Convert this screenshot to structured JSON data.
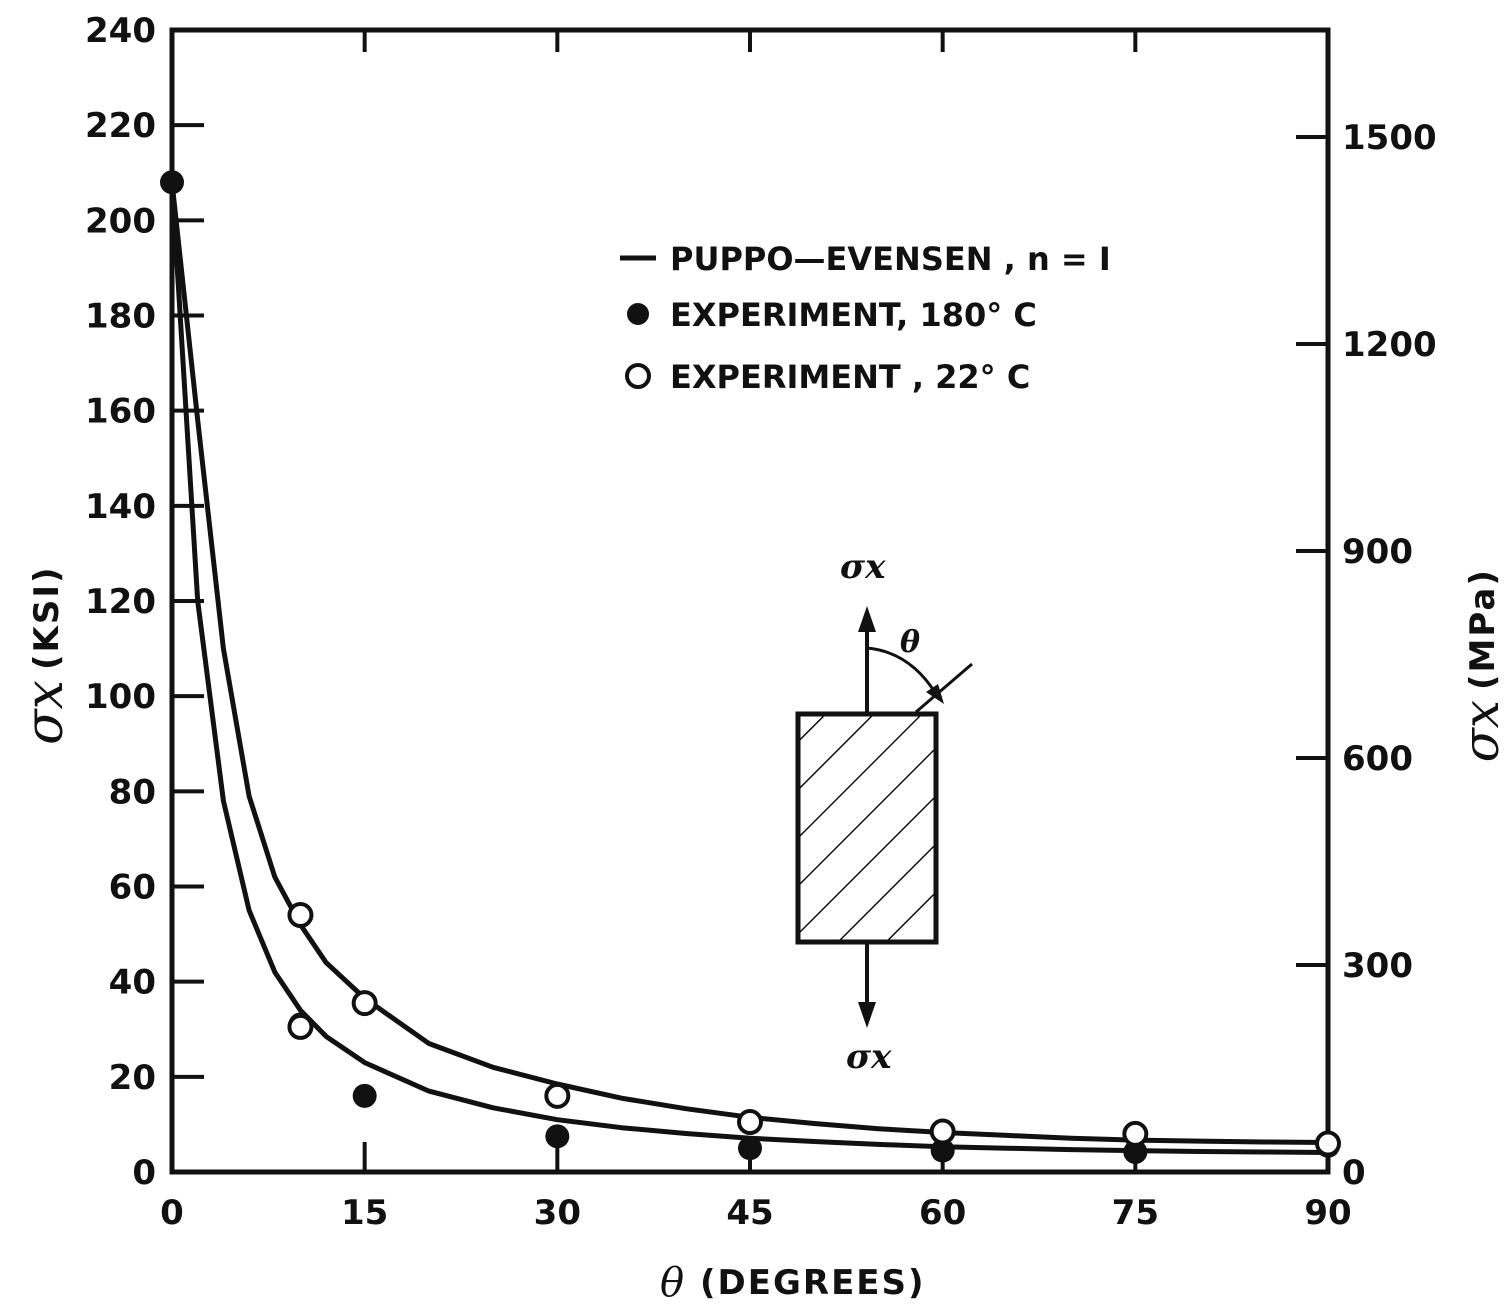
{
  "chart_data": {
    "type": "scatter",
    "title": "",
    "xlabel_symbol": "θ",
    "xlabel": "(DEGREES)",
    "ylabel_symbol": "σx",
    "ylabel": "(KSI)",
    "y2label_symbol": "σx",
    "y2label": "(MPa)",
    "xlim": [
      0,
      90
    ],
    "ylim": [
      0,
      240
    ],
    "y2lim": [
      0,
      1655
    ],
    "x_ticks": [
      "0",
      "15",
      "30",
      "45",
      "60",
      "75",
      "90"
    ],
    "y_ticks": [
      "0",
      "20",
      "40",
      "60",
      "80",
      "100",
      "120",
      "140",
      "160",
      "180",
      "200",
      "220",
      "240"
    ],
    "y2_ticks": [
      "0",
      "300",
      "600",
      "900",
      "1200",
      "1500"
    ],
    "grid": false,
    "legend_position": "top-right",
    "legend": [
      {
        "marker": "line",
        "label": "PUPPO—EVENSEN , n = I"
      },
      {
        "marker": "filled-circle",
        "label": "EXPERIMENT,  180° C"
      },
      {
        "marker": "open-circle",
        "label": "EXPERIMENT ,  22° C"
      }
    ],
    "series": [
      {
        "name": "PUPPO—EVENSEN , n = I",
        "kind": "curve",
        "description_id": "upper",
        "x": [
          0,
          2,
          4,
          6,
          8,
          10,
          12,
          15,
          20,
          25,
          30,
          35,
          40,
          45,
          50,
          55,
          60,
          65,
          70,
          75,
          80,
          85,
          90
        ],
        "y": [
          208,
          158,
          110,
          79,
          62,
          52,
          44,
          36.5,
          27,
          22,
          18.5,
          15.5,
          13.3,
          11.5,
          10.2,
          9.1,
          8.3,
          7.7,
          7.1,
          6.7,
          6.5,
          6.3,
          6.2
        ]
      },
      {
        "name": "PUPPO—EVENSEN , n = I",
        "kind": "curve",
        "description_id": "lower",
        "x": [
          0,
          2,
          4,
          6,
          8,
          10,
          12,
          15,
          20,
          25,
          30,
          35,
          40,
          45,
          50,
          55,
          60,
          65,
          70,
          75,
          80,
          85,
          90
        ],
        "y": [
          208,
          120,
          78,
          55,
          42,
          34,
          28.5,
          23,
          17,
          13.5,
          11,
          9.3,
          8.1,
          7.1,
          6.4,
          5.8,
          5.3,
          5.0,
          4.7,
          4.5,
          4.3,
          4.2,
          4.1
        ]
      },
      {
        "name": "EXPERIMENT,  180° C",
        "kind": "filled",
        "x": [
          0,
          10,
          15,
          30,
          45,
          60,
          75,
          90
        ],
        "y": [
          208,
          31,
          16,
          7.5,
          5,
          4.5,
          4.2,
          5.5
        ]
      },
      {
        "name": "EXPERIMENT ,  22° C",
        "kind": "open",
        "x": [
          10,
          10,
          15,
          30,
          45,
          60,
          75,
          90
        ],
        "y": [
          54,
          30.5,
          35.5,
          16,
          10.5,
          8.5,
          8,
          6
        ]
      }
    ],
    "inset": {
      "top_label": "σx",
      "bottom_label": "σx",
      "angle_label": "θ"
    }
  }
}
